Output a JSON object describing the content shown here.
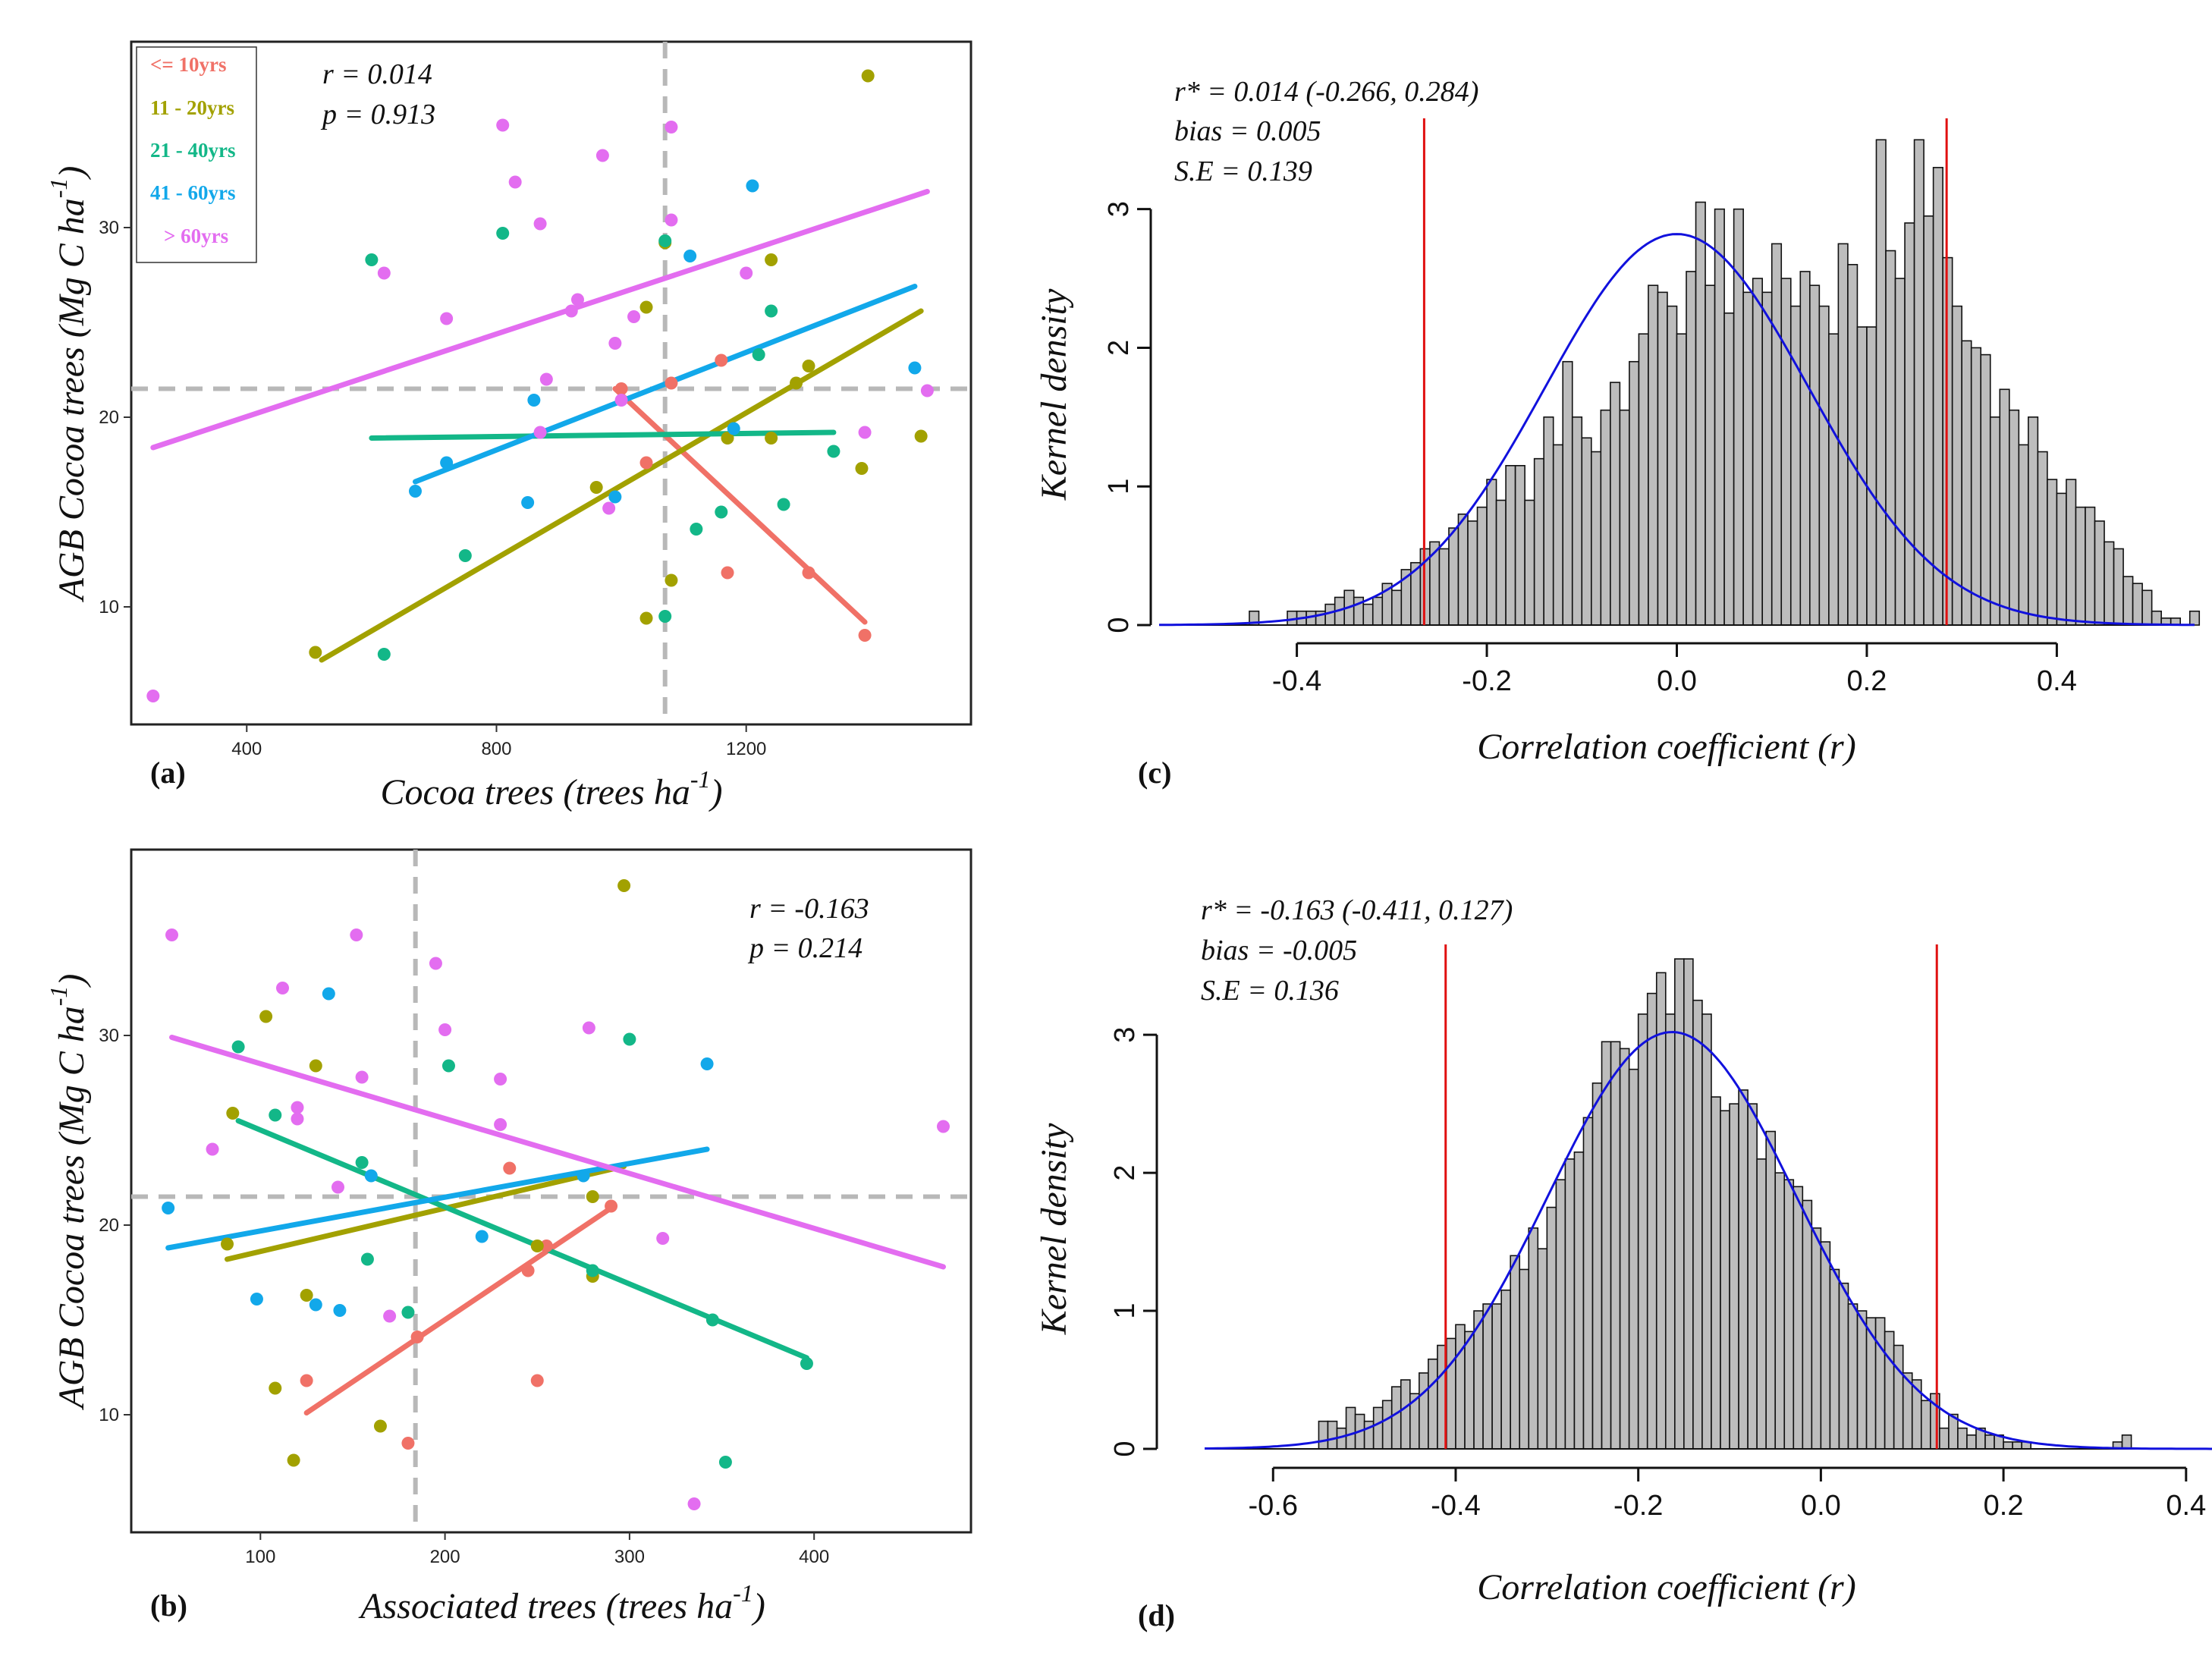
{
  "chart_data": [
    {
      "panel": "(a)",
      "type": "scatter",
      "xlabel": "Cocoa trees (trees ha",
      "xlabel_sup": "-1",
      "xlabel_end": ")",
      "ylabel": "AGB Cocoa trees (Mg C ha",
      "ylabel_sup": "-1",
      "ylabel_end": ")",
      "xlim": [
        215,
        1560
      ],
      "ylim": [
        3.8,
        39.8
      ],
      "xticks": [
        400,
        800,
        1200
      ],
      "yticks": [
        10,
        20,
        30
      ],
      "annotations": [
        "r =  0.014",
        "p = 0.913"
      ],
      "mean_x": 1070,
      "mean_y": 21.5,
      "legend": [
        {
          "label": "<= 10yrs",
          "color": "#f07167"
        },
        {
          "label": "11 - 20yrs",
          "color": "#a2a100"
        },
        {
          "label": "21 - 40yrs",
          "color": "#13b788"
        },
        {
          "label": "41 - 60yrs",
          "color": "#12a8ea"
        },
        {
          "label": "> 60yrs",
          "color": "#e36df0"
        }
      ],
      "series": [
        {
          "name": "<= 10yrs",
          "points": [
            [
              1000,
              21.5
            ],
            [
              1080,
              21.8
            ],
            [
              1040,
              17.6
            ],
            [
              1170,
              11.8
            ],
            [
              1160,
              23
            ],
            [
              1300,
              11.8
            ],
            [
              1390,
              8.5
            ]
          ],
          "line": [
            [
              990,
              21.5
            ],
            [
              1390,
              9.2
            ]
          ]
        },
        {
          "name": "11 - 20yrs",
          "points": [
            [
              1395,
              38
            ],
            [
              1385,
              17.3
            ],
            [
              1480,
              19
            ],
            [
              1240,
              28.3
            ],
            [
              1240,
              18.9
            ],
            [
              1280,
              21.8
            ],
            [
              1300,
              22.7
            ],
            [
              1170,
              18.9
            ],
            [
              1070,
              29.2
            ],
            [
              1080,
              11.4
            ],
            [
              1040,
              9.4
            ],
            [
              960,
              16.3
            ],
            [
              1040,
              25.8
            ],
            [
              510,
              7.6
            ]
          ],
          "line": [
            [
              520,
              7.2
            ],
            [
              1480,
              25.6
            ]
          ]
        },
        {
          "name": "21 - 40yrs",
          "points": [
            [
              600,
              28.3
            ],
            [
              620,
              7.5
            ],
            [
              750,
              12.7
            ],
            [
              810,
              29.7
            ],
            [
              1070,
              29.3
            ],
            [
              1070,
              9.5
            ],
            [
              1120,
              14.1
            ],
            [
              1160,
              15
            ],
            [
              1220,
              23.3
            ],
            [
              1240,
              25.6
            ],
            [
              1260,
              15.4
            ],
            [
              1340,
              18.2
            ]
          ],
          "line": [
            [
              600,
              18.9
            ],
            [
              1340,
              19.2
            ]
          ]
        },
        {
          "name": "41 - 60yrs",
          "points": [
            [
              670,
              16.1
            ],
            [
              720,
              17.6
            ],
            [
              850,
              15.5
            ],
            [
              860,
              20.9
            ],
            [
              990,
              15.8
            ],
            [
              1110,
              28.5
            ],
            [
              1180,
              19.4
            ],
            [
              1210,
              32.2
            ],
            [
              1470,
              22.6
            ]
          ],
          "line": [
            [
              670,
              16.6
            ],
            [
              1470,
              26.9
            ]
          ]
        },
        {
          "name": "> 60yrs",
          "points": [
            [
              250,
              5.3
            ],
            [
              620,
              27.6
            ],
            [
              720,
              25.2
            ],
            [
              810,
              35.4
            ],
            [
              830,
              32.4
            ],
            [
              870,
              30.2
            ],
            [
              880,
              22
            ],
            [
              870,
              19.2
            ],
            [
              920,
              25.6
            ],
            [
              930,
              26.2
            ],
            [
              970,
              33.8
            ],
            [
              980,
              15.2
            ],
            [
              990,
              23.9
            ],
            [
              1000,
              20.9
            ],
            [
              1020,
              25.3
            ],
            [
              1080,
              35.3
            ],
            [
              1080,
              30.4
            ],
            [
              1200,
              27.6
            ],
            [
              1390,
              19.2
            ],
            [
              1490,
              21.4
            ]
          ],
          "line": [
            [
              250,
              18.4
            ],
            [
              1490,
              31.9
            ]
          ]
        }
      ]
    },
    {
      "panel": "(b)",
      "type": "scatter",
      "xlabel": "Associated trees (trees ha",
      "xlabel_sup": "-1",
      "xlabel_end": ")",
      "ylabel": "AGB Cocoa trees (Mg C ha",
      "ylabel_sup": "-1",
      "ylabel_end": ")",
      "xlim": [
        30,
        485
      ],
      "ylim": [
        3.8,
        39.8
      ],
      "xticks": [
        100,
        200,
        300,
        400
      ],
      "yticks": [
        10,
        20,
        30
      ],
      "annotations": [
        "r = -0.163",
        "p = 0.214"
      ],
      "mean_x": 184,
      "mean_y": 21.5,
      "series": [
        {
          "name": "<= 10yrs",
          "points": [
            [
              125,
              11.8
            ],
            [
              180,
              8.5
            ],
            [
              185,
              14.1
            ],
            [
              235,
              23
            ],
            [
              245,
              17.6
            ],
            [
              250,
              11.8
            ],
            [
              255,
              18.9
            ],
            [
              290,
              21
            ]
          ],
          "line": [
            [
              125,
              10.1
            ],
            [
              290,
              20.9
            ]
          ]
        },
        {
          "name": "11 - 20yrs",
          "points": [
            [
              82,
              19
            ],
            [
              85,
              25.9
            ],
            [
              103,
              31
            ],
            [
              108,
              11.4
            ],
            [
              118,
              7.6
            ],
            [
              125,
              16.3
            ],
            [
              130,
              28.4
            ],
            [
              165,
              9.4
            ],
            [
              250,
              18.9
            ],
            [
              280,
              17.3
            ],
            [
              280,
              21.5
            ],
            [
              297,
              37.9
            ]
          ],
          "line": [
            [
              82,
              18.2
            ],
            [
              297,
              23.1
            ]
          ]
        },
        {
          "name": "21 - 40yrs",
          "points": [
            [
              88,
              29.4
            ],
            [
              108,
              25.8
            ],
            [
              155,
              23.3
            ],
            [
              158,
              18.2
            ],
            [
              180,
              15.4
            ],
            [
              202,
              28.4
            ],
            [
              280,
              17.6
            ],
            [
              300,
              29.8
            ],
            [
              345,
              15
            ],
            [
              352,
              7.5
            ],
            [
              396,
              12.7
            ]
          ],
          "line": [
            [
              88,
              25.5
            ],
            [
              396,
              13
            ]
          ]
        },
        {
          "name": "41 - 60yrs",
          "points": [
            [
              50,
              20.9
            ],
            [
              98,
              16.1
            ],
            [
              130,
              15.8
            ],
            [
              137,
              32.2
            ],
            [
              143,
              15.5
            ],
            [
              160,
              22.6
            ],
            [
              220,
              19.4
            ],
            [
              275,
              22.6
            ],
            [
              342,
              28.5
            ]
          ],
          "line": [
            [
              50,
              18.8
            ],
            [
              342,
              24
            ]
          ]
        },
        {
          "name": "> 60yrs",
          "points": [
            [
              52,
              35.3
            ],
            [
              74,
              24
            ],
            [
              112,
              32.5
            ],
            [
              120,
              26.2
            ],
            [
              120,
              25.6
            ],
            [
              142,
              22
            ],
            [
              152,
              35.3
            ],
            [
              155,
              27.8
            ],
            [
              170,
              15.2
            ],
            [
              195,
              33.8
            ],
            [
              200,
              30.3
            ],
            [
              230,
              27.7
            ],
            [
              230,
              25.3
            ],
            [
              278,
              30.4
            ],
            [
              318,
              19.3
            ],
            [
              335,
              5.3
            ],
            [
              470,
              25.2
            ]
          ],
          "line": [
            [
              52,
              29.9
            ],
            [
              470,
              17.8
            ]
          ]
        }
      ]
    },
    {
      "panel": "(c)",
      "type": "bar",
      "subtype": "histogram",
      "xlabel": "Correlation coefficient (r)",
      "ylabel": "Kernel density",
      "xlim": [
        -0.545,
        0.545
      ],
      "ylim": [
        0,
        3.6
      ],
      "xticks": [
        "-0.4",
        "-0.2",
        "0.0",
        "0.2",
        "0.4"
      ],
      "xtick_values": [
        -0.4,
        -0.2,
        0.0,
        0.2,
        0.4
      ],
      "yticks": [
        0,
        1,
        2,
        3
      ],
      "annotations": [
        "r* = 0.014 (-0.266,  0.284)",
        "bias = 0.005",
        "S.E = 0.139"
      ],
      "ci_lines": [
        -0.266,
        0.284
      ],
      "center": 0.0,
      "sigma": 0.139,
      "peak": 2.82,
      "bin_width": 0.01,
      "bin_start": -0.45,
      "values": [
        0.1,
        0,
        0,
        0,
        0.1,
        0.1,
        0.1,
        0.1,
        0.15,
        0.2,
        0.25,
        0.2,
        0.15,
        0.2,
        0.3,
        0.25,
        0.4,
        0.45,
        0.55,
        0.6,
        0.55,
        0.7,
        0.8,
        0.75,
        0.85,
        1.05,
        0.9,
        1.15,
        1.15,
        0.9,
        1.2,
        1.5,
        1.3,
        1.9,
        1.5,
        1.35,
        1.25,
        1.55,
        1.75,
        1.55,
        1.9,
        2.1,
        2.45,
        2.4,
        2.3,
        2.1,
        2.55,
        3.05,
        2.45,
        3.0,
        2.25,
        3.0,
        2.4,
        2.5,
        2.4,
        2.75,
        2.5,
        2.3,
        2.55,
        2.45,
        2.3,
        2.1,
        2.75,
        2.6,
        2.15,
        2.15,
        3.5,
        2.7,
        2.5,
        2.9,
        3.5,
        2.95,
        3.3,
        2.65,
        2.3,
        2.05,
        2.0,
        1.95,
        1.5,
        1.7,
        1.55,
        1.3,
        1.5,
        1.25,
        1.05,
        0.95,
        1.05,
        0.85,
        0.85,
        0.75,
        0.6,
        0.55,
        0.35,
        0.3,
        0.25,
        0.1,
        0.05,
        0.05,
        0,
        0.1
      ]
    },
    {
      "panel": "(d)",
      "type": "bar",
      "subtype": "histogram",
      "xlabel": "Correlation coefficient (r)",
      "ylabel": "Kernel density",
      "xlim": [
        -0.675,
        0.455
      ],
      "ylim": [
        0,
        3.6
      ],
      "xticks": [
        "-0.6",
        "-0.4",
        "-0.2",
        "0.0",
        "0.2",
        "0.4"
      ],
      "xtick_values": [
        -0.6,
        -0.4,
        -0.2,
        0.0,
        0.2,
        0.4
      ],
      "yticks": [
        0,
        1,
        2,
        3
      ],
      "annotations": [
        "r* = -0.163 (-0.411,  0.127)",
        "bias = -0.005",
        "S.E = 0.136"
      ],
      "ci_lines": [
        -0.411,
        0.127
      ],
      "center": -0.163,
      "sigma": 0.136,
      "peak": 3.02,
      "bin_width": 0.01,
      "bin_start": -0.55,
      "values": [
        0.2,
        0.2,
        0.15,
        0.3,
        0.25,
        0.2,
        0.3,
        0.35,
        0.45,
        0.5,
        0.4,
        0.55,
        0.65,
        0.75,
        0.8,
        0.9,
        0.85,
        1.0,
        1.05,
        1.05,
        1.15,
        1.4,
        1.3,
        1.6,
        1.45,
        1.75,
        1.95,
        2.1,
        2.15,
        2.4,
        2.65,
        2.95,
        2.95,
        2.9,
        2.75,
        3.15,
        3.3,
        3.45,
        3.15,
        3.55,
        3.55,
        3.25,
        3.15,
        2.55,
        2.45,
        2.5,
        2.6,
        2.5,
        2.1,
        2.3,
        2.0,
        1.95,
        1.9,
        1.8,
        1.6,
        1.5,
        1.3,
        1.2,
        1.05,
        1.0,
        0.95,
        0.95,
        0.85,
        0.75,
        0.55,
        0.5,
        0.35,
        0.4,
        0.15,
        0.25,
        0.15,
        0.1,
        0.15,
        0.1,
        0.1,
        0.05,
        0.05,
        0.05,
        0,
        0,
        0,
        0,
        0,
        0,
        0,
        0,
        0,
        0.05,
        0.1
      ]
    }
  ]
}
